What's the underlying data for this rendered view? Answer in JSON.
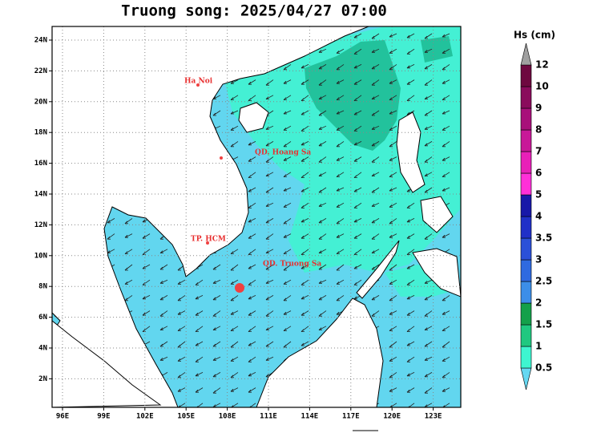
{
  "title": "Truong song: 2025/04/27 07:00",
  "map": {
    "lon_labels": [
      "96E",
      "99E",
      "102E",
      "105E",
      "108E",
      "111E",
      "114E",
      "117E",
      "120E",
      "123E"
    ],
    "lat_labels": [
      "24N",
      "22N",
      "20N",
      "18N",
      "16N",
      "14N",
      "12N",
      "10N",
      "8N",
      "6N",
      "4N",
      "2N"
    ],
    "places": [
      "Ha Noi",
      "QD. Hoang Sa",
      "TP. HCM",
      "QD. Truong Sa"
    ]
  },
  "colorbar": {
    "title": "Hs (cm)",
    "levels": [
      0.5,
      1,
      1.5,
      2,
      2.5,
      3,
      3.5,
      4,
      5,
      6,
      7,
      8,
      9,
      10,
      12
    ],
    "colors": [
      "#66d8f2",
      "#3ef5d0",
      "#20c880",
      "#14a04a",
      "#3c8ee8",
      "#2f6ae0",
      "#2b50d8",
      "#2030c8",
      "#1818a8",
      "#ff30d8",
      "#e820b8",
      "#c81898",
      "#a8107a",
      "#8a0c5c",
      "#6e0840",
      "#a0a0a0"
    ]
  }
}
